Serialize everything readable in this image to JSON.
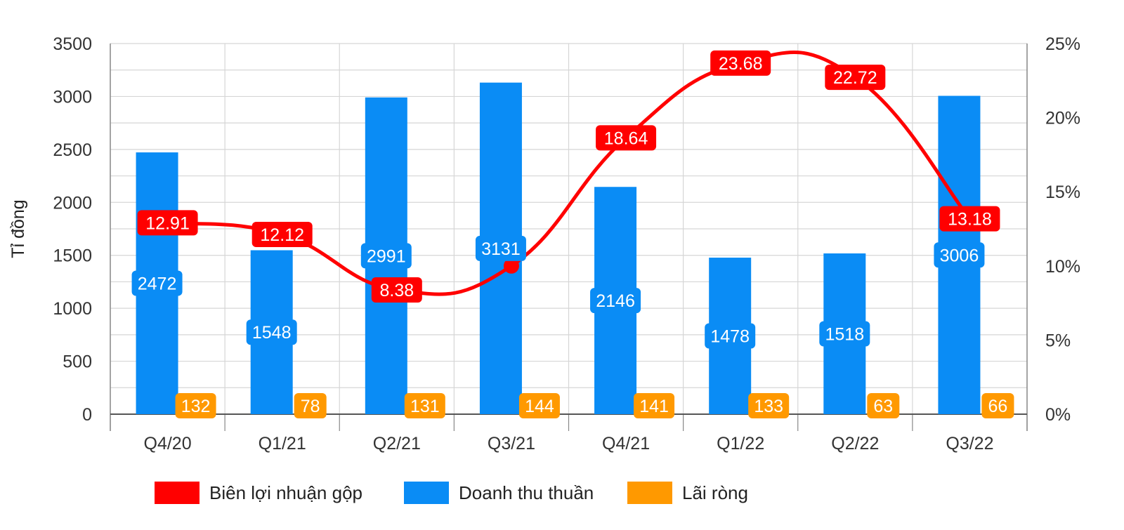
{
  "chart_data": {
    "type": "bar",
    "categories": [
      "Q4/20",
      "Q1/21",
      "Q2/21",
      "Q3/21",
      "Q4/21",
      "Q1/22",
      "Q2/22",
      "Q3/22"
    ],
    "ylabel": "Tỉ đồng",
    "ylim": [
      0,
      3500
    ],
    "y_ticks": [
      "0",
      "500",
      "1000",
      "1500",
      "2000",
      "2500",
      "3000",
      "3500"
    ],
    "y2lim": [
      0,
      25
    ],
    "y2_ticks": [
      "0%",
      "5%",
      "10%",
      "15%",
      "20%",
      "25%"
    ],
    "grid": true,
    "legend_position": "bottom",
    "series": [
      {
        "name": "Biên lợi nhuận gộp",
        "type": "line",
        "axis": "right",
        "color": "#ff0000",
        "values": [
          12.91,
          12.12,
          8.38,
          10.0,
          18.64,
          23.68,
          22.72,
          13.18
        ],
        "labels": [
          "12.91",
          "12.12",
          "8.38",
          "",
          "18.64",
          "23.68",
          "22.72",
          "13.18"
        ]
      },
      {
        "name": "Doanh thu thuần",
        "type": "bar",
        "axis": "left",
        "color": "#0a8cf5",
        "values": [
          2472,
          1548,
          2991,
          3131,
          2146,
          1478,
          1518,
          3006
        ],
        "labels": [
          "2472",
          "1548",
          "2991",
          "3131",
          "2146",
          "1478",
          "1518",
          "3006"
        ]
      },
      {
        "name": "Lãi ròng",
        "type": "bar",
        "axis": "left",
        "color": "#ff9900",
        "values": [
          132,
          78,
          131,
          144,
          141,
          133,
          63,
          66
        ],
        "labels": [
          "132",
          "78",
          "131",
          "144",
          "141",
          "133",
          "63",
          "66"
        ]
      }
    ]
  }
}
